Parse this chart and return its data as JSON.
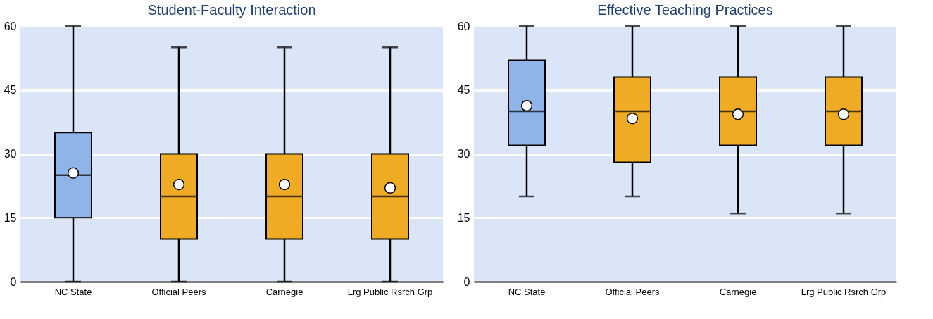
{
  "chart_data": [
    {
      "type": "box",
      "title": "Student-Faculty Interaction",
      "categories": [
        "NC State",
        "Official Peers",
        "Carnegie",
        "Lrg Public Rsrch Grp"
      ],
      "colors": [
        "#8eb4e8",
        "#f0ab24",
        "#f0ab24",
        "#f0ab24"
      ],
      "boxes": [
        {
          "low": 0,
          "q1": 15,
          "median": 25,
          "q3": 35,
          "high": 60,
          "mean": 25.5
        },
        {
          "low": 0,
          "q1": 10,
          "median": 20,
          "q3": 30,
          "high": 55,
          "mean": 22.8
        },
        {
          "low": 0,
          "q1": 10,
          "median": 20,
          "q3": 30,
          "high": 55,
          "mean": 22.8
        },
        {
          "low": 0,
          "q1": 10,
          "median": 20,
          "q3": 30,
          "high": 55,
          "mean": 22
        }
      ],
      "ylim": [
        0,
        60
      ],
      "yticks": [
        0,
        15,
        30,
        45,
        60
      ],
      "grid": "y"
    },
    {
      "type": "box",
      "title": "Effective Teaching Practices",
      "categories": [
        "NC State",
        "Official Peers",
        "Carnegie",
        "Lrg Public Rsrch Grp"
      ],
      "colors": [
        "#8eb4e8",
        "#f0ab24",
        "#f0ab24",
        "#f0ab24"
      ],
      "boxes": [
        {
          "low": 20,
          "q1": 32,
          "median": 40,
          "q3": 52,
          "high": 60,
          "mean": 41.3
        },
        {
          "low": 20,
          "q1": 28,
          "median": 40,
          "q3": 48,
          "high": 60,
          "mean": 38.3
        },
        {
          "low": 16,
          "q1": 32,
          "median": 40,
          "q3": 48,
          "high": 60,
          "mean": 39.3
        },
        {
          "low": 16,
          "q1": 32,
          "median": 40,
          "q3": 48,
          "high": 60,
          "mean": 39.3
        }
      ],
      "ylim": [
        0,
        60
      ],
      "yticks": [
        0,
        15,
        30,
        45,
        60
      ],
      "grid": "y"
    }
  ]
}
